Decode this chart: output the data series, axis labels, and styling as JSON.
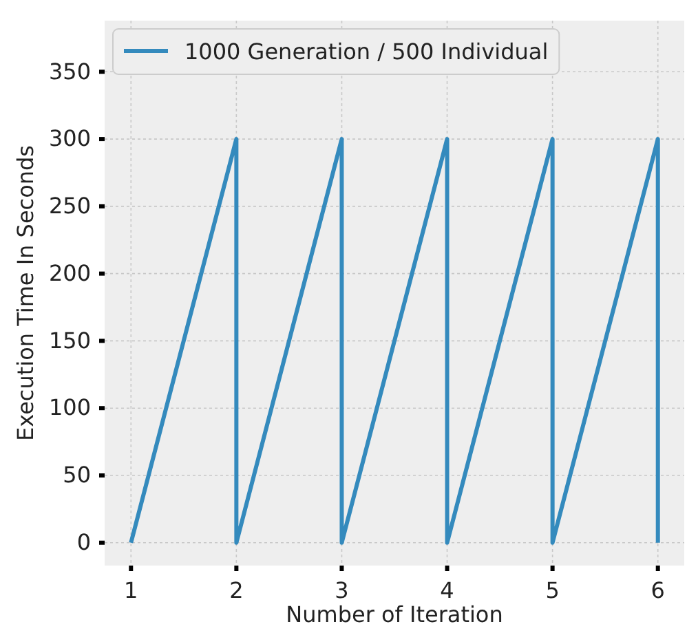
{
  "chart_data": {
    "type": "line",
    "xlabel": "Number of Iteration",
    "ylabel": "Execution Time In Seconds",
    "series": [
      {
        "name": "1000 Generation / 500 Individual",
        "color": "#348abd",
        "x": [
          1,
          2,
          2,
          3,
          3,
          4,
          4,
          5,
          5,
          6,
          6
        ],
        "values": [
          0,
          300,
          0,
          300,
          0,
          300,
          0,
          300,
          0,
          300,
          0
        ]
      }
    ],
    "xlim": [
      0.75,
      6.25
    ],
    "xticks": [
      1,
      2,
      3,
      4,
      5,
      6
    ],
    "ylim": [
      -17,
      388
    ],
    "yticks": [
      0,
      50,
      100,
      150,
      200,
      250,
      300,
      350
    ],
    "grid": true,
    "legend": "top left",
    "marker": "none",
    "line_style": "solid"
  }
}
